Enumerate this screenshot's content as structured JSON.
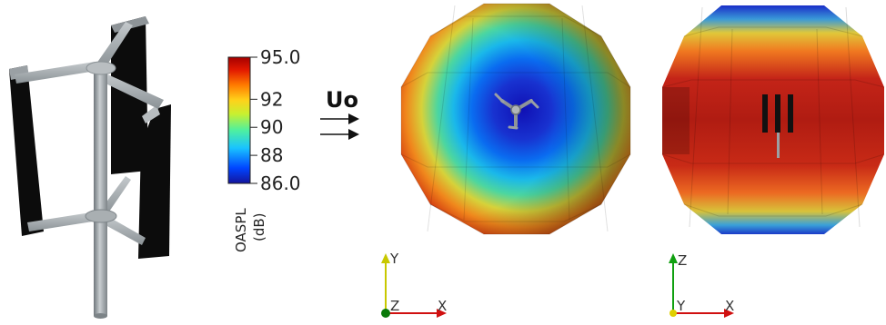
{
  "colorbar": {
    "title_line1": "OASPL",
    "title_line2": "(dB)",
    "ticks": [
      "95.0",
      "92",
      "90",
      "88",
      "86.0"
    ],
    "range": [
      86.0,
      95.0
    ],
    "colormap": [
      "#1a1aa8",
      "#0055ff",
      "#19c7ff",
      "#5cf08c",
      "#eaea2a",
      "#ff8a00",
      "#e81a00",
      "#a00000"
    ]
  },
  "flow": {
    "label": "Uo"
  },
  "triad_left": {
    "vertical": "Y",
    "horizontal": "X",
    "out": "Z"
  },
  "triad_right": {
    "vertical": "Z",
    "horizontal": "X",
    "out": "Y"
  },
  "colors": {
    "axis_x": "#d01010",
    "axis_y": "#c8c800",
    "axis_z": "#10a010",
    "blade": "#0a0a0a",
    "shaft": "#9aa0a4"
  }
}
